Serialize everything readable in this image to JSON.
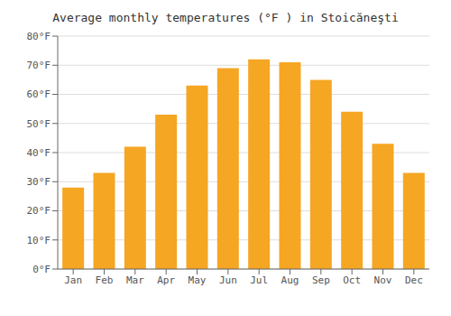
{
  "chart_data": {
    "type": "bar",
    "title": "Average monthly temperatures (°F ) in Stoicăneşti",
    "categories": [
      "Jan",
      "Feb",
      "Mar",
      "Apr",
      "May",
      "Jun",
      "Jul",
      "Aug",
      "Sep",
      "Oct",
      "Nov",
      "Dec"
    ],
    "values": [
      28.0,
      33.0,
      42.0,
      53.0,
      63.0,
      69.0,
      72.0,
      71.0,
      65.0,
      54.0,
      43.0,
      33.0
    ],
    "color": "#F5A623",
    "ylim": [
      0,
      80
    ],
    "yticks": [
      {
        "value": 0,
        "label": "0°F"
      },
      {
        "value": 10,
        "label": "10°F"
      },
      {
        "value": 20,
        "label": "20°F"
      },
      {
        "value": 30,
        "label": "30°F"
      },
      {
        "value": 40,
        "label": "40°F"
      },
      {
        "value": 50,
        "label": "50°F"
      },
      {
        "value": 60,
        "label": "60°F"
      },
      {
        "value": 70,
        "label": "70°F"
      },
      {
        "value": 80,
        "label": "80°F"
      }
    ],
    "grid": true
  }
}
